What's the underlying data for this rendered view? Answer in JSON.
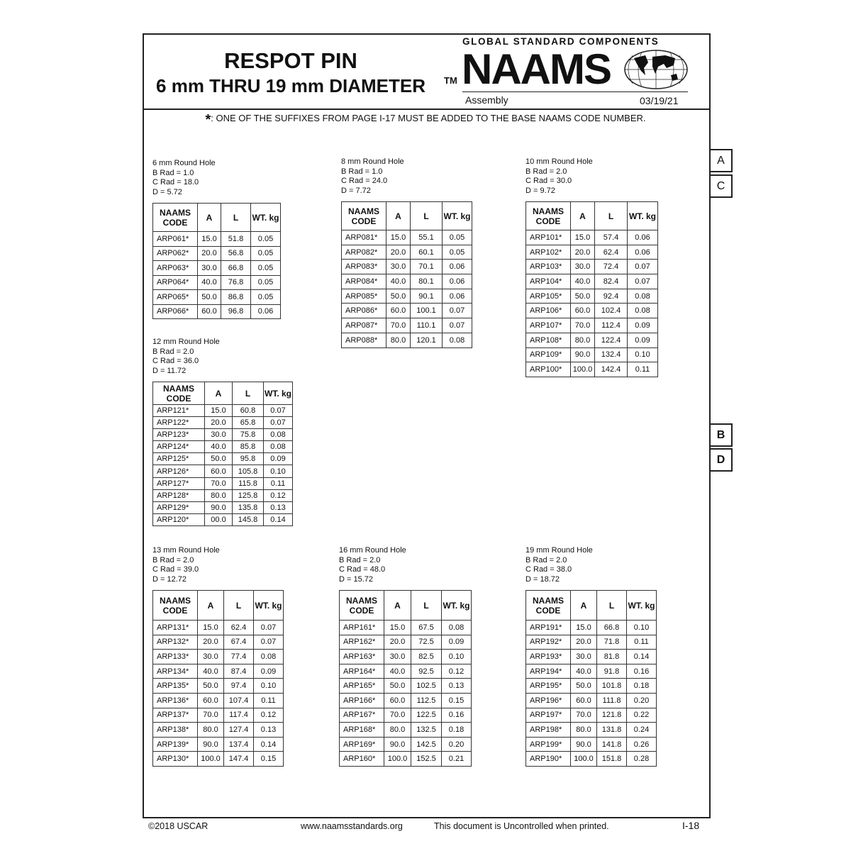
{
  "header": {
    "title": "RESPOT PIN",
    "subtitle": "6 mm THRU 19 mm DIAMETER",
    "tm": "TM",
    "logo_tagline": "GLOBAL STANDARD COMPONENTS",
    "logo_text": "NAAMS",
    "category": "Assembly",
    "date": "03/19/21"
  },
  "note": {
    "symbol": "*",
    "text": ": ONE OF THE SUFFIXES FROM PAGE I-17 MUST BE ADDED TO THE BASE NAAMS CODE NUMBER."
  },
  "columns": {
    "code": "NAAMS CODE",
    "a": "A",
    "l": "L",
    "wt": "WT. kg"
  },
  "tables": [
    {
      "title": "6 mm Round Hole",
      "brad": "B Rad = 1.0",
      "crad": "C Rad = 18.0",
      "d": "D = 5.72",
      "rows": [
        [
          "ARP061*",
          "15.0",
          "51.8",
          "0.05"
        ],
        [
          "ARP062*",
          "20.0",
          "56.8",
          "0.05"
        ],
        [
          "ARP063*",
          "30.0",
          "66.8",
          "0.05"
        ],
        [
          "ARP064*",
          "40.0",
          "76.8",
          "0.05"
        ],
        [
          "ARP065*",
          "50.0",
          "86.8",
          "0.05"
        ],
        [
          "ARP066*",
          "60.0",
          "96.8",
          "0.06"
        ]
      ]
    },
    {
      "title": "8 mm Round Hole",
      "brad": "B Rad = 1.0",
      "crad": "C Rad = 24.0",
      "d": "D = 7.72",
      "rows": [
        [
          "ARP081*",
          "15.0",
          "55.1",
          "0.05"
        ],
        [
          "ARP082*",
          "20.0",
          "60.1",
          "0.05"
        ],
        [
          "ARP083*",
          "30.0",
          "70.1",
          "0.06"
        ],
        [
          "ARP084*",
          "40.0",
          "80.1",
          "0.06"
        ],
        [
          "ARP085*",
          "50.0",
          "90.1",
          "0.06"
        ],
        [
          "ARP086*",
          "60.0",
          "100.1",
          "0.07"
        ],
        [
          "ARP087*",
          "70.0",
          "110.1",
          "0.07"
        ],
        [
          "ARP088*",
          "80.0",
          "120.1",
          "0.08"
        ]
      ]
    },
    {
      "title": "10 mm Round Hole",
      "brad": "B Rad = 2.0",
      "crad": "C Rad = 30.0",
      "d": "D = 9.72",
      "rows": [
        [
          "ARP101*",
          "15.0",
          "57.4",
          "0.06"
        ],
        [
          "ARP102*",
          "20.0",
          "62.4",
          "0.06"
        ],
        [
          "ARP103*",
          "30.0",
          "72.4",
          "0.07"
        ],
        [
          "ARP104*",
          "40.0",
          "82.4",
          "0.07"
        ],
        [
          "ARP105*",
          "50.0",
          "92.4",
          "0.08"
        ],
        [
          "ARP106*",
          "60.0",
          "102.4",
          "0.08"
        ],
        [
          "ARP107*",
          "70.0",
          "112.4",
          "0.09"
        ],
        [
          "ARP108*",
          "80.0",
          "122.4",
          "0.09"
        ],
        [
          "ARP109*",
          "90.0",
          "132.4",
          "0.10"
        ],
        [
          "ARP100*",
          "100.0",
          "142.4",
          "0.11"
        ]
      ]
    },
    {
      "title": "12 mm Round Hole",
      "brad": "B Rad = 2.0",
      "crad": "C Rad = 36.0",
      "d": "D = 11.72",
      "rows": [
        [
          "ARP121*",
          "15.0",
          "60.8",
          "0.07"
        ],
        [
          "ARP122*",
          "20.0",
          "65.8",
          "0.07"
        ],
        [
          "ARP123*",
          "30.0",
          "75.8",
          "0.08"
        ],
        [
          "ARP124*",
          "40.0",
          "85.8",
          "0.08"
        ],
        [
          "ARP125*",
          "50.0",
          "95.8",
          "0.09"
        ],
        [
          "ARP126*",
          "60.0",
          "105.8",
          "0.10"
        ],
        [
          "ARP127*",
          "70.0",
          "115.8",
          "0.11"
        ],
        [
          "ARP128*",
          "80.0",
          "125.8",
          "0.12"
        ],
        [
          "ARP129*",
          "90.0",
          "135.8",
          "0.13"
        ],
        [
          "ARP120*",
          "00.0",
          "145.8",
          "0.14"
        ]
      ]
    },
    {
      "title": "13 mm Round Hole",
      "brad": "B Rad = 2.0",
      "crad": "C Rad = 39.0",
      "d": "D = 12.72",
      "rows": [
        [
          "ARP131*",
          "15.0",
          "62.4",
          "0.07"
        ],
        [
          "ARP132*",
          "20.0",
          "67.4",
          "0.07"
        ],
        [
          "ARP133*",
          "30.0",
          "77.4",
          "0.08"
        ],
        [
          "ARP134*",
          "40.0",
          "87.4",
          "0.09"
        ],
        [
          "ARP135*",
          "50.0",
          "97.4",
          "0.10"
        ],
        [
          "ARP136*",
          "60.0",
          "107.4",
          "0.11"
        ],
        [
          "ARP137*",
          "70.0",
          "117.4",
          "0.12"
        ],
        [
          "ARP138*",
          "80.0",
          "127.4",
          "0.13"
        ],
        [
          "ARP139*",
          "90.0",
          "137.4",
          "0.14"
        ],
        [
          "ARP130*",
          "100.0",
          "147.4",
          "0.15"
        ]
      ]
    },
    {
      "title": "16 mm Round Hole",
      "brad": "B Rad = 2.0",
      "crad": "C Rad = 48.0",
      "d": "D = 15.72",
      "rows": [
        [
          "ARP161*",
          "15.0",
          "67.5",
          "0.08"
        ],
        [
          "ARP162*",
          "20.0",
          "72.5",
          "0.09"
        ],
        [
          "ARP163*",
          "30.0",
          "82.5",
          "0.10"
        ],
        [
          "ARP164*",
          "40.0",
          "92.5",
          "0.12"
        ],
        [
          "ARP165*",
          "50.0",
          "102.5",
          "0.13"
        ],
        [
          "ARP166*",
          "60.0",
          "112.5",
          "0.15"
        ],
        [
          "ARP167*",
          "70.0",
          "122.5",
          "0.16"
        ],
        [
          "ARP168*",
          "80.0",
          "132.5",
          "0.18"
        ],
        [
          "ARP169*",
          "90.0",
          "142.5",
          "0.20"
        ],
        [
          "ARP160*",
          "100.0",
          "152.5",
          "0.21"
        ]
      ]
    },
    {
      "title": "19 mm Round Hole",
      "brad": "B Rad = 2.0",
      "crad": "C Rad = 38.0",
      "d": "D = 18.72",
      "rows": [
        [
          "ARP191*",
          "15.0",
          "66.8",
          "0.10"
        ],
        [
          "ARP192*",
          "20.0",
          "71.8",
          "0.11"
        ],
        [
          "ARP193*",
          "30.0",
          "81.8",
          "0.14"
        ],
        [
          "ARP194*",
          "40.0",
          "91.8",
          "0.16"
        ],
        [
          "ARP195*",
          "50.0",
          "101.8",
          "0.18"
        ],
        [
          "ARP196*",
          "60.0",
          "111.8",
          "0.20"
        ],
        [
          "ARP197*",
          "70.0",
          "121.8",
          "0.22"
        ],
        [
          "ARP198*",
          "80.0",
          "131.8",
          "0.24"
        ],
        [
          "ARP199*",
          "90.0",
          "141.8",
          "0.26"
        ],
        [
          "ARP190*",
          "100.0",
          "151.8",
          "0.28"
        ]
      ]
    }
  ],
  "side_tabs": [
    "A",
    "C",
    "B",
    "D"
  ],
  "footer": {
    "copyright": "©2018 USCAR",
    "url": "www.naamsstandards.org",
    "disclaimer": "This document is Uncontrolled when printed.",
    "page": "I-18"
  }
}
